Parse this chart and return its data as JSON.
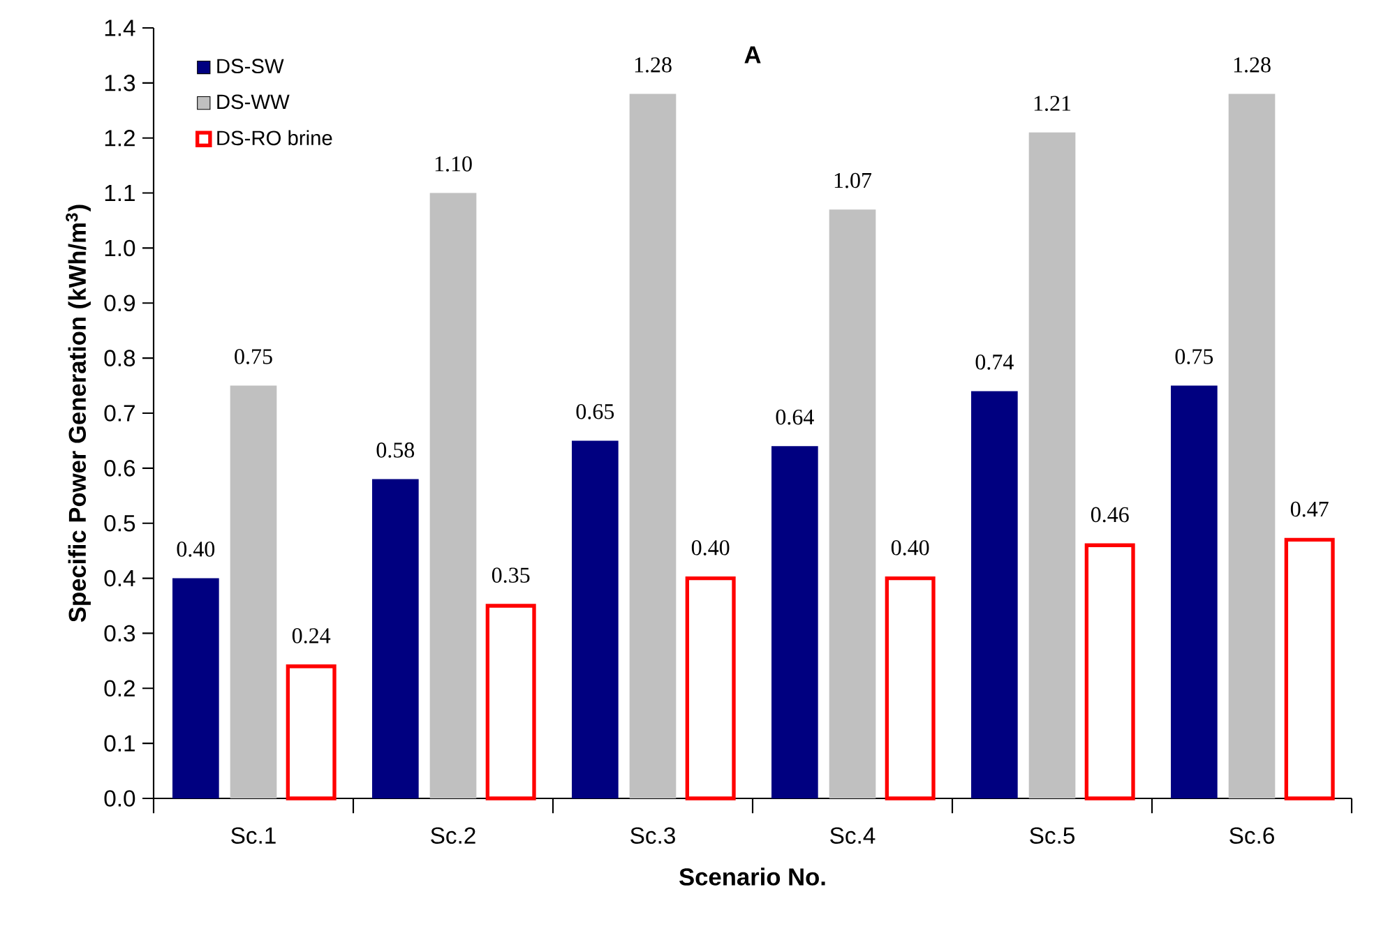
{
  "chart_data": {
    "type": "bar",
    "title": "A",
    "xlabel": "Scenario No.",
    "ylabel": "Specific Power Generation (kWh/m$^{3}$)",
    "categories": [
      "Sc.1",
      "Sc.2",
      "Sc.3",
      "Sc.4",
      "Sc.5",
      "Sc.6"
    ],
    "series": [
      {
        "name": "DS-SW",
        "color": "#000080",
        "values": [
          0.4,
          0.58,
          0.65,
          0.64,
          0.74,
          0.75
        ],
        "value_labels": [
          "0.40",
          "0.58",
          "0.65",
          "0.64",
          "0.74",
          "0.75"
        ]
      },
      {
        "name": "DS-WW",
        "color": "#c0c0c0",
        "values": [
          0.75,
          1.1,
          1.28,
          1.07,
          1.21,
          1.28
        ],
        "value_labels": [
          "0.75",
          "1.10",
          "1.28",
          "1.07",
          "1.21",
          "1.28"
        ]
      },
      {
        "name": "DS-RO brine",
        "color": "#ff0000",
        "values": [
          0.24,
          0.35,
          0.4,
          0.4,
          0.46,
          0.47
        ],
        "value_labels": [
          "0.24",
          "0.35",
          "0.40",
          "0.40",
          "0.46",
          "0.47"
        ]
      }
    ],
    "ylim": [
      0,
      1.4
    ],
    "yticks": [
      {
        "value": 0,
        "label": "0.0"
      },
      {
        "value": 0.1,
        "label": "0.1"
      },
      {
        "value": 0.2,
        "label": "0.2"
      },
      {
        "value": 0.3,
        "label": "0.3"
      },
      {
        "value": 0.4,
        "label": "0.4"
      },
      {
        "value": 0.5,
        "label": "0.5"
      },
      {
        "value": 0.6,
        "label": "0.6"
      },
      {
        "value": 0.7,
        "label": "0.7"
      },
      {
        "value": 0.8,
        "label": "0.8"
      },
      {
        "value": 0.9,
        "label": "0.9"
      },
      {
        "value": 1.0,
        "label": "1.0"
      },
      {
        "value": 1.1,
        "label": "1.1"
      },
      {
        "value": 1.2,
        "label": "1.2"
      },
      {
        "value": 1.3,
        "label": "1.3"
      },
      {
        "value": 1.4,
        "label": "1.4"
      }
    ],
    "grid": false,
    "legend": "top left"
  }
}
